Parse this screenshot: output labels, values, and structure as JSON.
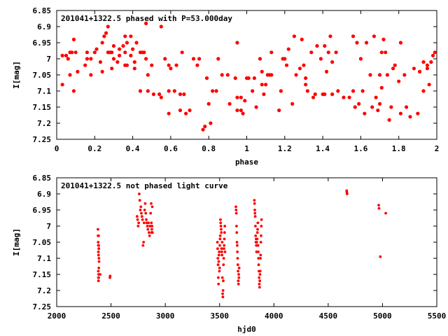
{
  "chart_data": [
    {
      "type": "scatter",
      "title": "201041+1322.5 phased with P=53.000day",
      "xlabel": "phase",
      "ylabel": "I[mag]",
      "xlim": [
        0,
        2
      ],
      "ylim": [
        6.85,
        7.25
      ],
      "y_inverted": true,
      "xticks": [
        "0",
        "0.2",
        "0.4",
        "0.6",
        "0.8",
        "1",
        "1.2",
        "1.4",
        "1.6",
        "1.8",
        "2"
      ],
      "yticks": [
        "6.85",
        "6.9",
        "6.95",
        "7",
        "7.05",
        "7.1",
        "7.15",
        "7.2",
        "7.25"
      ],
      "marker_color": "#ff0000",
      "points": [
        [
          0.03,
          7.08
        ],
        [
          0.03,
          6.99
        ],
        [
          0.05,
          6.99
        ],
        [
          0.06,
          7.0
        ],
        [
          0.07,
          6.98
        ],
        [
          0.07,
          7.05
        ],
        [
          0.08,
          6.98
        ],
        [
          0.09,
          6.94
        ],
        [
          0.09,
          7.1
        ],
        [
          0.1,
          6.98
        ],
        [
          0.11,
          7.04
        ],
        [
          0.15,
          7.02
        ],
        [
          0.16,
          6.98
        ],
        [
          0.16,
          7.0
        ],
        [
          0.18,
          7.0
        ],
        [
          0.18,
          7.05
        ],
        [
          0.2,
          6.98
        ],
        [
          0.21,
          6.97
        ],
        [
          0.23,
          7.01
        ],
        [
          0.24,
          6.95
        ],
        [
          0.24,
          7.04
        ],
        [
          0.25,
          6.93
        ],
        [
          0.26,
          6.92
        ],
        [
          0.27,
          6.9
        ],
        [
          0.27,
          6.98
        ],
        [
          0.28,
          6.98
        ],
        [
          0.29,
          7.03
        ],
        [
          0.29,
          6.98
        ],
        [
          0.3,
          6.96
        ],
        [
          0.3,
          7.0
        ],
        [
          0.32,
          7.01
        ],
        [
          0.33,
          6.97
        ],
        [
          0.33,
          6.99
        ],
        [
          0.35,
          6.96
        ],
        [
          0.36,
          6.93
        ],
        [
          0.36,
          6.98
        ],
        [
          0.36,
          7.02
        ],
        [
          0.37,
          6.95
        ],
        [
          0.37,
          7.02
        ],
        [
          0.39,
          6.99
        ],
        [
          0.39,
          6.93
        ],
        [
          0.4,
          6.97
        ],
        [
          0.41,
          7.01
        ],
        [
          0.41,
          7.03
        ],
        [
          0.42,
          6.95
        ],
        [
          0.44,
          6.98
        ],
        [
          0.44,
          7.1
        ],
        [
          0.45,
          6.98
        ],
        [
          0.46,
          6.98
        ],
        [
          0.47,
          7.0
        ],
        [
          0.47,
          6.89
        ],
        [
          0.48,
          7.05
        ],
        [
          0.48,
          7.1
        ],
        [
          0.5,
          7.02
        ],
        [
          0.51,
          7.11
        ],
        [
          0.54,
          7.11
        ],
        [
          0.55,
          6.9
        ],
        [
          0.55,
          7.12
        ],
        [
          0.57,
          7.0
        ],
        [
          0.59,
          7.02
        ],
        [
          0.59,
          7.17
        ],
        [
          0.59,
          7.1
        ],
        [
          0.6,
          7.03
        ],
        [
          0.62,
          7.1
        ],
        [
          0.63,
          7.02
        ],
        [
          0.65,
          7.16
        ],
        [
          0.65,
          7.11
        ],
        [
          0.66,
          6.98
        ],
        [
          0.67,
          7.11
        ],
        [
          0.68,
          7.17
        ],
        [
          0.7,
          7.16
        ],
        [
          0.72,
          7.0
        ],
        [
          0.74,
          7.02
        ],
        [
          0.75,
          7.0
        ],
        [
          0.77,
          7.22
        ],
        [
          0.78,
          7.21
        ],
        [
          0.79,
          7.06
        ],
        [
          0.8,
          7.14
        ],
        [
          0.81,
          7.2
        ],
        [
          0.82,
          7.1
        ],
        [
          0.84,
          7.1
        ],
        [
          0.85,
          7.0
        ],
        [
          0.87,
          7.05
        ],
        [
          0.9,
          7.05
        ],
        [
          0.91,
          7.14
        ],
        [
          0.94,
          7.06
        ],
        [
          0.95,
          7.12
        ],
        [
          0.95,
          6.95
        ],
        [
          0.95,
          7.16
        ],
        [
          0.97,
          7.16
        ],
        [
          0.97,
          7.12
        ],
        [
          0.98,
          7.17
        ],
        [
          0.99,
          7.13
        ],
        [
          1.0,
          7.06
        ],
        [
          1.01,
          7.06
        ],
        [
          1.03,
          7.1
        ],
        [
          1.04,
          7.06
        ],
        [
          1.05,
          7.15
        ],
        [
          1.07,
          7.0
        ],
        [
          1.08,
          7.04
        ],
        [
          1.08,
          7.08
        ],
        [
          1.09,
          7.11
        ],
        [
          1.1,
          7.08
        ],
        [
          1.11,
          7.05
        ],
        [
          1.12,
          7.05
        ],
        [
          1.13,
          6.98
        ],
        [
          1.13,
          7.05
        ],
        [
          1.17,
          7.16
        ],
        [
          1.18,
          7.1
        ],
        [
          1.19,
          7.0
        ],
        [
          1.2,
          7.0
        ],
        [
          1.21,
          7.02
        ],
        [
          1.22,
          6.97
        ],
        [
          1.24,
          7.14
        ],
        [
          1.25,
          6.93
        ],
        [
          1.26,
          7.05
        ],
        [
          1.28,
          7.03
        ],
        [
          1.29,
          6.94
        ],
        [
          1.3,
          7.02
        ],
        [
          1.31,
          7.06
        ],
        [
          1.31,
          7.08
        ],
        [
          1.32,
          7.1
        ],
        [
          1.34,
          6.98
        ],
        [
          1.35,
          7.12
        ],
        [
          1.36,
          7.11
        ],
        [
          1.37,
          6.96
        ],
        [
          1.39,
          7.0
        ],
        [
          1.4,
          7.11
        ],
        [
          1.41,
          7.11
        ],
        [
          1.41,
          6.96
        ],
        [
          1.42,
          7.04
        ],
        [
          1.43,
          6.98
        ],
        [
          1.44,
          6.93
        ],
        [
          1.45,
          7.01
        ],
        [
          1.45,
          7.11
        ],
        [
          1.47,
          6.98
        ],
        [
          1.48,
          7.1
        ],
        [
          1.51,
          7.12
        ],
        [
          1.54,
          7.12
        ],
        [
          1.56,
          6.93
        ],
        [
          1.56,
          7.1
        ],
        [
          1.57,
          7.15
        ],
        [
          1.58,
          6.95
        ],
        [
          1.59,
          7.14
        ],
        [
          1.6,
          7.0
        ],
        [
          1.61,
          7.1
        ],
        [
          1.62,
          7.17
        ],
        [
          1.63,
          6.95
        ],
        [
          1.65,
          7.05
        ],
        [
          1.66,
          7.15
        ],
        [
          1.67,
          6.93
        ],
        [
          1.68,
          7.12
        ],
        [
          1.69,
          7.16
        ],
        [
          1.7,
          7.14
        ],
        [
          1.7,
          7.05
        ],
        [
          1.71,
          7.09
        ],
        [
          1.71,
          6.98
        ],
        [
          1.72,
          6.94
        ],
        [
          1.73,
          6.98
        ],
        [
          1.74,
          7.05
        ],
        [
          1.75,
          7.19
        ],
        [
          1.76,
          7.15
        ],
        [
          1.77,
          7.03
        ],
        [
          1.78,
          7.02
        ],
        [
          1.8,
          7.07
        ],
        [
          1.81,
          7.17
        ],
        [
          1.81,
          6.95
        ],
        [
          1.83,
          7.05
        ],
        [
          1.84,
          7.15
        ],
        [
          1.86,
          7.18
        ],
        [
          1.88,
          7.03
        ],
        [
          1.9,
          7.17
        ],
        [
          1.91,
          7.04
        ],
        [
          1.93,
          7.1
        ],
        [
          1.93,
          7.01
        ],
        [
          1.95,
          7.02
        ],
        [
          1.95,
          7.03
        ],
        [
          1.96,
          7.08
        ],
        [
          1.97,
          7.01
        ],
        [
          1.98,
          6.99
        ],
        [
          1.99,
          6.98
        ]
      ]
    },
    {
      "type": "scatter",
      "title": "201041+1322.5 not phased light curve",
      "xlabel": "hjd0",
      "ylabel": "I[mag]",
      "xlim": [
        2000,
        5500
      ],
      "ylim": [
        6.85,
        7.25
      ],
      "y_inverted": true,
      "xticks": [
        "2000",
        "2500",
        "3000",
        "3500",
        "4000",
        "4500",
        "5000",
        "5500"
      ],
      "yticks": [
        "6.85",
        "6.9",
        "6.95",
        "7",
        "7.05",
        "7.1",
        "7.15",
        "7.2",
        "7.25"
      ],
      "marker_color": "#ff0000",
      "points": [
        [
          2380,
          7.01
        ],
        [
          2381,
          7.03
        ],
        [
          2382,
          7.05
        ],
        [
          2383,
          7.06
        ],
        [
          2384,
          7.08
        ],
        [
          2385,
          7.09
        ],
        [
          2386,
          7.03
        ],
        [
          2387,
          7.06
        ],
        [
          2388,
          7.07
        ],
        [
          2389,
          7.1
        ],
        [
          2390,
          7.11
        ],
        [
          2383,
          7.14
        ],
        [
          2384,
          7.16
        ],
        [
          2385,
          7.17
        ],
        [
          2386,
          7.15
        ],
        [
          2387,
          7.16
        ],
        [
          2388,
          7.13
        ],
        [
          2400,
          7.15
        ],
        [
          2490,
          7.16
        ],
        [
          2492,
          7.155
        ],
        [
          2740,
          6.97
        ],
        [
          2745,
          6.98
        ],
        [
          2750,
          7.0
        ],
        [
          2755,
          6.99
        ],
        [
          2760,
          6.9
        ],
        [
          2765,
          6.92
        ],
        [
          2770,
          6.95
        ],
        [
          2775,
          6.94
        ],
        [
          2780,
          6.96
        ],
        [
          2785,
          6.97
        ],
        [
          2790,
          6.98
        ],
        [
          2795,
          7.06
        ],
        [
          2800,
          7.05
        ],
        [
          2805,
          6.99
        ],
        [
          2810,
          6.95
        ],
        [
          2815,
          6.93
        ],
        [
          2820,
          6.96
        ],
        [
          2825,
          6.98
        ],
        [
          2830,
          6.99
        ],
        [
          2835,
          7.0
        ],
        [
          2840,
          7.01
        ],
        [
          2845,
          6.99
        ],
        [
          2850,
          7.02
        ],
        [
          2855,
          7.03
        ],
        [
          2860,
          7.0
        ],
        [
          2865,
          6.96
        ],
        [
          2870,
          6.93
        ],
        [
          2872,
          6.99
        ],
        [
          2874,
          7.02
        ],
        [
          2876,
          7.01
        ],
        [
          2878,
          7.0
        ],
        [
          2880,
          6.94
        ],
        [
          2882,
          7.02
        ],
        [
          3480,
          7.05
        ],
        [
          3482,
          7.07
        ],
        [
          3484,
          7.1
        ],
        [
          3486,
          7.12
        ],
        [
          3488,
          7.16
        ],
        [
          3490,
          7.18
        ],
        [
          3492,
          7.11
        ],
        [
          3494,
          7.09
        ],
        [
          3496,
          7.08
        ],
        [
          3498,
          7.14
        ],
        [
          3500,
          7.13
        ],
        [
          3502,
          7.06
        ],
        [
          3504,
          7.04
        ],
        [
          3506,
          7.03
        ],
        [
          3508,
          6.98
        ],
        [
          3510,
          6.99
        ],
        [
          3512,
          7.0
        ],
        [
          3514,
          7.01
        ],
        [
          3516,
          7.02
        ],
        [
          3518,
          7.07
        ],
        [
          3520,
          7.08
        ],
        [
          3522,
          7.09
        ],
        [
          3524,
          7.05
        ],
        [
          3526,
          7.16
        ],
        [
          3528,
          7.21
        ],
        [
          3530,
          7.22
        ],
        [
          3532,
          7.2
        ],
        [
          3534,
          7.17
        ],
        [
          3536,
          7.12
        ],
        [
          3538,
          7.1
        ],
        [
          3540,
          7.07
        ],
        [
          3542,
          7.06
        ],
        [
          3544,
          7.04
        ],
        [
          3546,
          7.02
        ],
        [
          3548,
          7.0
        ],
        [
          3550,
          7.08
        ],
        [
          3650,
          6.94
        ],
        [
          3652,
          6.95
        ],
        [
          3654,
          6.96
        ],
        [
          3656,
          7.0
        ],
        [
          3658,
          7.02
        ],
        [
          3660,
          7.05
        ],
        [
          3662,
          7.06
        ],
        [
          3664,
          7.08
        ],
        [
          3666,
          7.1
        ],
        [
          3668,
          7.12
        ],
        [
          3670,
          7.14
        ],
        [
          3672,
          7.17
        ],
        [
          3674,
          7.18
        ],
        [
          3676,
          7.15
        ],
        [
          3678,
          7.16
        ],
        [
          3680,
          7.13
        ],
        [
          3820,
          6.92
        ],
        [
          3822,
          6.93
        ],
        [
          3824,
          6.95
        ],
        [
          3826,
          6.96
        ],
        [
          3828,
          6.97
        ],
        [
          3830,
          7.0
        ],
        [
          3832,
          7.03
        ],
        [
          3834,
          7.05
        ],
        [
          3836,
          7.04
        ],
        [
          3838,
          7.06
        ],
        [
          3840,
          7.08
        ],
        [
          3842,
          7.05
        ],
        [
          3844,
          7.06
        ],
        [
          3846,
          7.04
        ],
        [
          3848,
          7.02
        ],
        [
          3850,
          7.01
        ],
        [
          3852,
          6.99
        ],
        [
          3854,
          7.06
        ],
        [
          3856,
          7.08
        ],
        [
          3858,
          7.1
        ],
        [
          3860,
          7.12
        ],
        [
          3862,
          7.14
        ],
        [
          3864,
          7.16
        ],
        [
          3866,
          7.18
        ],
        [
          3868,
          7.19
        ],
        [
          3870,
          7.17
        ],
        [
          3872,
          7.15
        ],
        [
          3874,
          7.14
        ],
        [
          3876,
          7.1
        ],
        [
          3878,
          7.09
        ],
        [
          3880,
          7.05
        ],
        [
          3882,
          7.03
        ],
        [
          3884,
          7.0
        ],
        [
          3886,
          6.98
        ],
        [
          4670,
          6.89
        ],
        [
          4672,
          6.895
        ],
        [
          4674,
          6.9
        ],
        [
          4965,
          6.935
        ],
        [
          4968,
          6.945
        ],
        [
          4980,
          7.095
        ],
        [
          5030,
          6.96
        ]
      ]
    }
  ]
}
